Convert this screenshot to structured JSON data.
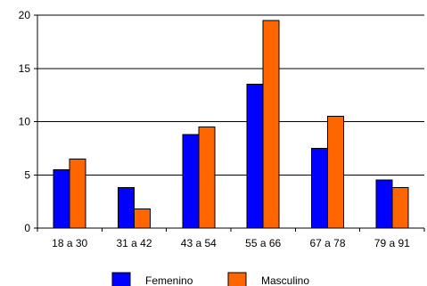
{
  "chart_data": {
    "type": "bar",
    "categories": [
      "18 a 30",
      "31 a 42",
      "43 a 54",
      "55 a 66",
      "67 a 78",
      "79 a 91"
    ],
    "series": [
      {
        "name": "Femenino",
        "color": "#0000ff",
        "values": [
          5.5,
          3.8,
          8.8,
          13.5,
          7.5,
          4.5
        ]
      },
      {
        "name": "Masculino",
        "color": "#ff6600",
        "values": [
          6.5,
          1.8,
          9.5,
          19.5,
          10.5,
          3.8
        ]
      }
    ],
    "ylim": [
      0,
      20
    ],
    "yticks": [
      0,
      5,
      10,
      15,
      20
    ],
    "ytick_labels": [
      "0",
      "5",
      "10",
      "15",
      "20"
    ],
    "grid": true,
    "legend": "bottom"
  }
}
